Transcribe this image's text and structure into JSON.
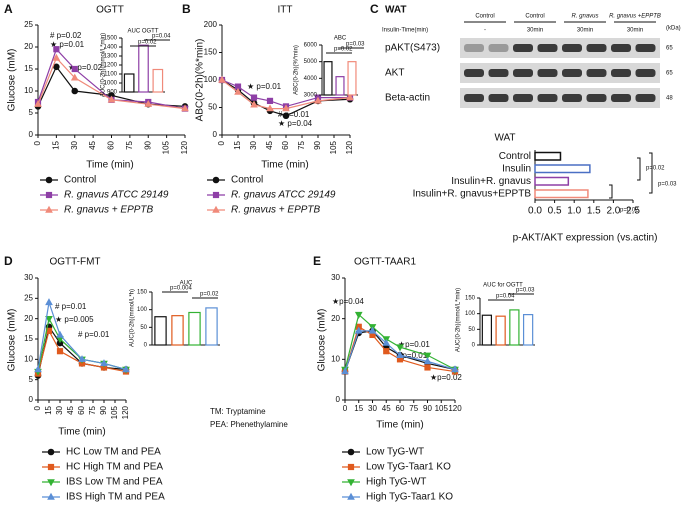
{
  "chart_data": [
    {
      "type": "line",
      "label": "A",
      "title": "OGTT",
      "xlabel": "Time (min)",
      "ylabel": "Glucose (mM)",
      "x": [
        0,
        15,
        30,
        60,
        90,
        120
      ],
      "xlim": [
        0,
        120
      ],
      "xticks": [
        0,
        15,
        30,
        45,
        60,
        75,
        90,
        105,
        120
      ],
      "ylim": [
        0,
        25
      ],
      "yticks": [
        0,
        5,
        10,
        15,
        20,
        25
      ],
      "series": [
        {
          "name": "Control",
          "color": "#111111",
          "marker": "circle",
          "values": [
            6.5,
            15.5,
            10,
            9,
            7,
            6.5
          ]
        },
        {
          "name": "R. gnavus ATCC 29149",
          "color": "#8e3fa6",
          "marker": "square",
          "values": [
            7.5,
            19.5,
            15,
            8,
            7.5,
            6
          ]
        },
        {
          "name": "R. gnavus + EPPTB",
          "color": "#f08a7a",
          "marker": "triangle-up",
          "values": [
            7,
            17.5,
            13,
            8,
            7,
            6
          ]
        }
      ],
      "annotations": [
        "# p=0.02",
        "★ p=0.01",
        "★ p=0.02"
      ]
    },
    {
      "type": "vbar",
      "title": "AUC OGTT",
      "ylabel": "AUC(0-2h)(mmol/L*min)",
      "values": [
        1100,
        1420,
        1150
      ],
      "colors": [
        "#111111",
        "#8e3fa6",
        "#f08a7a"
      ],
      "ylim": [
        900,
        1500
      ],
      "yticks": [
        900,
        1000,
        1100,
        1200,
        1300,
        1400,
        1500
      ],
      "annotations": [
        "p=0.02",
        "p=0.04"
      ]
    },
    {
      "type": "line",
      "label": "B",
      "title": "ITT",
      "xlabel": "Time (min)",
      "ylabel": "ABC(0-2h)(%*min)",
      "x": [
        0,
        15,
        30,
        45,
        60,
        90,
        120
      ],
      "xlim": [
        0,
        120
      ],
      "xticks": [
        0,
        15,
        30,
        45,
        60,
        75,
        90,
        105,
        120
      ],
      "ylim": [
        0,
        200
      ],
      "yticks": [
        0,
        50,
        100,
        150,
        200
      ],
      "series": [
        {
          "name": "Control",
          "color": "#111111",
          "marker": "circle",
          "values": [
            100,
            82,
            58,
            44,
            35,
            62,
            65
          ]
        },
        {
          "name": "R. gnavus ATCC 29149",
          "color": "#8e3fa6",
          "marker": "square",
          "values": [
            100,
            88,
            68,
            62,
            52,
            68,
            68
          ]
        },
        {
          "name": "R. gnavus + EPPTB",
          "color": "#f08a7a",
          "marker": "triangle-up",
          "values": [
            100,
            78,
            55,
            48,
            48,
            62,
            68
          ]
        }
      ],
      "annotations": [
        "★ p=0.01",
        "# p=0.01",
        "★ p=0.04"
      ]
    },
    {
      "type": "vbar",
      "title": "ABC",
      "ylabel": "ABC(0-2h)(%*min)",
      "values": [
        5000,
        4100,
        5000
      ],
      "colors": [
        "#111111",
        "#8e3fa6",
        "#f08a7a"
      ],
      "ylim": [
        3000,
        6000
      ],
      "yticks": [
        3000,
        4000,
        5000,
        6000
      ],
      "annotations": [
        "p=0.02",
        "p=0.03"
      ]
    },
    {
      "type": "hbar",
      "label": "C",
      "title": "WAT",
      "xlabel": "p-AKT/AKT expression (vs.actin)",
      "categories": [
        "Control",
        "Insulin",
        "Insulin+R. gnavus",
        "Insulin+R. gnavus+EPPTB"
      ],
      "values": [
        0.65,
        1.4,
        0.85,
        1.35
      ],
      "colors": [
        "#111111",
        "#4a6fc4",
        "#8e3fa6",
        "#f08a7a"
      ],
      "xlim": [
        0,
        2.5
      ],
      "xticks": [
        {
          "value": 0,
          "label": "0.0"
        },
        0.5,
        {
          "value": 1,
          "label": "1.0"
        },
        1.5,
        {
          "value": 2,
          "label": "2.0"
        },
        2.5
      ],
      "annotations": [
        "p=0.02",
        "p=0.03",
        "p=0.02"
      ]
    },
    {
      "type": "line",
      "label": "D",
      "title": "OGTT-FMT",
      "xlabel": "Time (min)",
      "ylabel": "Glucose (mM)",
      "x": [
        0,
        15,
        30,
        60,
        90,
        120
      ],
      "xlim": [
        0,
        120
      ],
      "xticks": [
        0,
        15,
        30,
        45,
        60,
        75,
        90,
        105,
        120
      ],
      "ylim": [
        0,
        30
      ],
      "yticks": [
        0,
        5,
        10,
        15,
        20,
        25,
        30
      ],
      "series": [
        {
          "name": "HC Low TM and PEA",
          "color": "#111111",
          "marker": "circle",
          "values": [
            6,
            18,
            14,
            9,
            8,
            7.5
          ]
        },
        {
          "name": "HC High TM and PEA",
          "color": "#e05a1e",
          "marker": "square",
          "values": [
            6.5,
            17,
            12,
            9,
            8,
            7
          ]
        },
        {
          "name": "IBS Low TM and PEA",
          "color": "#33b233",
          "marker": "triangle-down",
          "values": [
            7,
            20,
            15,
            10,
            9,
            7.5
          ]
        },
        {
          "name": "IBS High TM and PEA",
          "color": "#5b8fd6",
          "marker": "triangle-up",
          "values": [
            7.5,
            24,
            16,
            10,
            9,
            7.5
          ]
        }
      ],
      "annotations": [
        "# p=0.01",
        "★ p=0.005",
        "# p=0.01"
      ],
      "notes": [
        "TM: Tryptamine",
        "PEA: Phenethylamine"
      ]
    },
    {
      "type": "vbar",
      "title": "AUC",
      "ylabel": "AUC(0-2h)(mmol/L*h)",
      "values": [
        80,
        83,
        92,
        105
      ],
      "colors": [
        "#111111",
        "#e05a1e",
        "#33b233",
        "#5b8fd6"
      ],
      "ylim": [
        0,
        150
      ],
      "yticks": [
        0,
        50,
        100,
        150
      ],
      "annotations": [
        "p=0.004",
        "p=0.02"
      ]
    },
    {
      "type": "line",
      "label": "E",
      "title": "OGTT-TAAR1",
      "xlabel": "Time (min)",
      "ylabel": "Glucose (mM)",
      "x": [
        0,
        15,
        30,
        45,
        60,
        90,
        120
      ],
      "xlim": [
        0,
        120
      ],
      "xticks": [
        0,
        15,
        30,
        45,
        60,
        75,
        90,
        105,
        120
      ],
      "ylim": [
        0,
        30
      ],
      "yticks": [
        0,
        10,
        20,
        30
      ],
      "series": [
        {
          "name": "Low TyG-WT",
          "color": "#111111",
          "marker": "circle",
          "values": [
            7,
            16.5,
            17,
            13,
            11,
            9,
            7.5
          ]
        },
        {
          "name": "Low TyG-Taar1 KO",
          "color": "#e05a1e",
          "marker": "square",
          "values": [
            7,
            18,
            16,
            12,
            10,
            8,
            7
          ]
        },
        {
          "name": "High TyG-WT",
          "color": "#33b233",
          "marker": "triangle-down",
          "values": [
            7.5,
            21,
            18,
            15,
            13,
            11,
            7.5
          ]
        },
        {
          "name": "High TyG-Taar1 KO",
          "color": "#5b8fd6",
          "marker": "triangle-up",
          "values": [
            7,
            17,
            17,
            14,
            11,
            9.5,
            7.5
          ]
        }
      ],
      "annotations": [
        "★p=0.04",
        "★p=0.01",
        "#p=0.01",
        "★p=0.02"
      ]
    },
    {
      "type": "vbar",
      "title": "AUC for OGTT",
      "ylabel": "AUC(0-2h)(mmol/L*min)",
      "values": [
        95,
        92,
        112,
        97
      ],
      "colors": [
        "#111111",
        "#e05a1e",
        "#33b233",
        "#5b8fd6"
      ],
      "ylim": [
        0,
        150
      ],
      "yticks": [
        0,
        50,
        100,
        150
      ],
      "annotations": [
        "p=0.04",
        "p=0.03"
      ]
    }
  ],
  "blot": {
    "title": "WAT",
    "time_header": "Insulin-Time(min)",
    "unit": "(kDa)",
    "columns": [
      "Control",
      "Control",
      "R. gnavus",
      "R. gnavus +EPPTB"
    ],
    "times": [
      "-",
      "30min",
      "30min",
      "30min"
    ],
    "rows": [
      "pAKT(S473)",
      "AKT",
      "Beta-actin"
    ],
    "kda": [
      "65",
      "65",
      "48"
    ]
  }
}
